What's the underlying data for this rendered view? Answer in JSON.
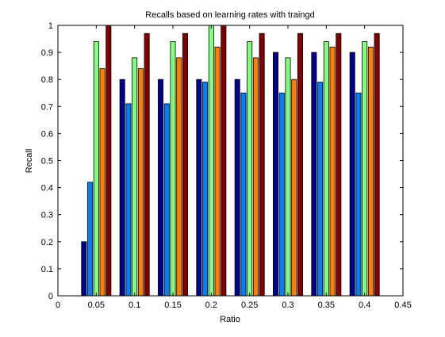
{
  "chart_data": {
    "type": "bar",
    "title": "Recalls based on learning rates with traingd",
    "xlabel": "Ratio",
    "ylabel": "Recall",
    "xlim": [
      0,
      0.45
    ],
    "ylim": [
      0,
      1
    ],
    "x_ticks": [
      "0",
      "0.05",
      "0.1",
      "0.15",
      "0.2",
      "0.25",
      "0.3",
      "0.35",
      "0.4",
      "0.45"
    ],
    "y_ticks": [
      "0",
      "0.1",
      "0.2",
      "0.3",
      "0.4",
      "0.5",
      "0.6",
      "0.7",
      "0.8",
      "0.9",
      "1"
    ],
    "x": [
      0.05,
      0.1,
      0.15,
      0.2,
      0.25,
      0.3,
      0.35,
      0.4
    ],
    "series": [
      {
        "color": "#00008f",
        "values": [
          0.2,
          0.8,
          0.8,
          0.8,
          0.8,
          0.9,
          0.9,
          0.9
        ]
      },
      {
        "color": "#0080ff",
        "values": [
          0.42,
          0.71,
          0.71,
          0.79,
          0.75,
          0.75,
          0.79,
          0.75
        ]
      },
      {
        "color": "#80ff80",
        "values": [
          0.94,
          0.88,
          0.94,
          1.0,
          0.94,
          0.88,
          0.94,
          0.94
        ]
      },
      {
        "color": "#ff8000",
        "values": [
          0.84,
          0.84,
          0.88,
          0.92,
          0.88,
          0.8,
          0.92,
          0.92
        ]
      },
      {
        "color": "#800000",
        "values": [
          1.0,
          0.97,
          0.97,
          1.0,
          0.97,
          0.97,
          0.97,
          0.97
        ]
      }
    ],
    "grid": false,
    "legend": "none"
  }
}
